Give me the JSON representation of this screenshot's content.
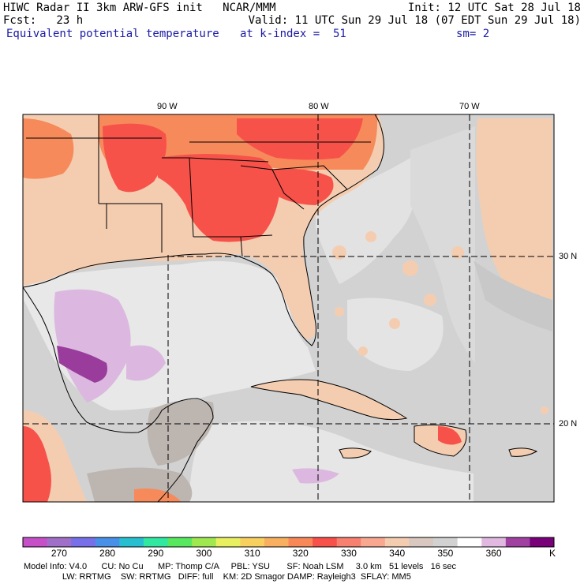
{
  "header": {
    "line1_left": "HIWC Radar II 3km ARW-GFS init   NCAR/MMM",
    "line1_right": "Init: 12 UTC Sat 28 Jul 18",
    "fcst": "Fcst:   23 h",
    "valid": "Valid: 11 UTC Sun 29 Jul 18 (07 EDT Sun 29 Jul 18)",
    "field": "Equivalent potential temperature",
    "level": "at k-index =  51",
    "smoothing": "sm= 2"
  },
  "map": {
    "lon_labels": [
      "90 W",
      "80 W",
      "70 W"
    ],
    "lat_labels": [
      "30 N",
      "20 N"
    ],
    "colors": {
      "ocean": "#d2d2d2",
      "gulf_light": "#e8e8e8",
      "land_warm": "#f4cdb1",
      "hot": "#f7524a",
      "orange": "#f78a5a",
      "lavender": "#dcb8e0",
      "purple": "#9a3c9c",
      "gray_mid": "#bdb5b0"
    }
  },
  "colorbar": {
    "colors": [
      "#c650c8",
      "#a070c8",
      "#7870e8",
      "#4890e8",
      "#28c0d0",
      "#30e8a0",
      "#58e860",
      "#a0e850",
      "#e8f060",
      "#f8d060",
      "#f8b060",
      "#f88858",
      "#f8504a",
      "#f88070",
      "#f8a890",
      "#f4cdb1",
      "#d8c8c0",
      "#d2d2d2",
      "#ffffff",
      "#e0b8e0",
      "#a040a0",
      "#780078"
    ],
    "ticks": [
      "270",
      "280",
      "290",
      "300",
      "310",
      "320",
      "330",
      "340",
      "350",
      "360"
    ],
    "unit": "K"
  },
  "footer": {
    "line1": "Model Info: V4.0      CU: No Cu      MP: Thomp C/A     PBL: YSU       SF: Noah LSM     3.0 km   51 levels   16 sec",
    "line2": "                LW: RRTMG    SW: RRTMG   DIFF: full    KM: 2D Smagor DAMP: Rayleigh3  SFLAY: MM5"
  }
}
